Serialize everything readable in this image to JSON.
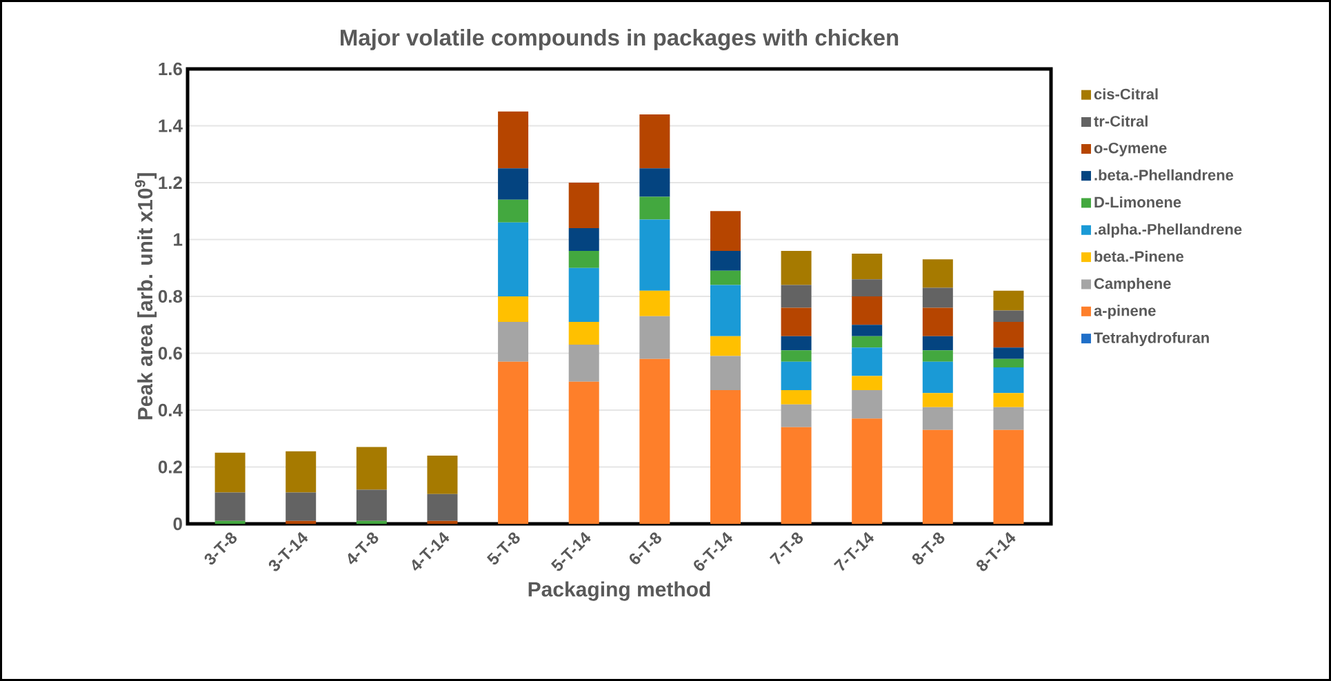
{
  "chart_data": {
    "type": "bar",
    "stacked": true,
    "title": "Major volatile compounds in packages with chicken",
    "xlabel": "Packaging method",
    "ylabel": "Peak area [arb. unit x10$^{9}$]",
    "categories": [
      "3-T-8",
      "3-T-14",
      "4-T-8",
      "4-T-14",
      "5-T-8",
      "5-T-14",
      "6-T-8",
      "6-T-14",
      "7-T-8",
      "7-T-14",
      "8-T-8",
      "8-T-14"
    ],
    "ylim": [
      0,
      1.6
    ],
    "yticks": [
      0,
      0.2,
      0.4,
      0.6,
      0.8,
      1,
      1.2,
      1.4,
      1.6
    ],
    "grid": "y",
    "legend": "right",
    "series": [
      {
        "name": "Tetrahydrofuran",
        "color": "#1f6fc8",
        "values": [
          0,
          0,
          0,
          0,
          0,
          0,
          0,
          0,
          0,
          0,
          0,
          0
        ]
      },
      {
        "name": "a-pinene",
        "color": "#fe7f2a",
        "values": [
          0,
          0,
          0,
          0,
          0.57,
          0.5,
          0.58,
          0.47,
          0.34,
          0.37,
          0.33,
          0.33
        ]
      },
      {
        "name": "Camphene",
        "color": "#a5a5a5",
        "values": [
          0,
          0,
          0,
          0,
          0.14,
          0.13,
          0.15,
          0.12,
          0.08,
          0.1,
          0.08,
          0.08
        ]
      },
      {
        "name": "beta.-Pinene",
        "color": "#ffc000",
        "values": [
          0,
          0,
          0,
          0,
          0.09,
          0.08,
          0.09,
          0.07,
          0.05,
          0.05,
          0.05,
          0.05
        ]
      },
      {
        "name": ".alpha.-Phellandrene",
        "color": "#1a9ad6",
        "values": [
          0,
          0,
          0,
          0,
          0.26,
          0.19,
          0.25,
          0.18,
          0.1,
          0.1,
          0.11,
          0.09
        ]
      },
      {
        "name": "D-Limonene",
        "color": "#43a83f",
        "values": [
          0.01,
          0,
          0.01,
          0,
          0.08,
          0.06,
          0.08,
          0.05,
          0.04,
          0.04,
          0.04,
          0.03
        ]
      },
      {
        "name": ".beta.-Phellandrene",
        "color": "#044480",
        "values": [
          0,
          0,
          0,
          0,
          0.11,
          0.08,
          0.1,
          0.07,
          0.05,
          0.04,
          0.05,
          0.04
        ]
      },
      {
        "name": "o-Cymene",
        "color": "#b64500",
        "values": [
          0,
          0.01,
          0,
          0.01,
          0.2,
          0.16,
          0.19,
          0.14,
          0.1,
          0.1,
          0.1,
          0.09
        ]
      },
      {
        "name": "tr-Citral",
        "color": "#636363",
        "values": [
          0.1,
          0.1,
          0.11,
          0.095,
          0,
          0,
          0,
          0,
          0.08,
          0.06,
          0.07,
          0.04
        ]
      },
      {
        "name": "cis-Citral",
        "color": "#a67a00",
        "values": [
          0.14,
          0.145,
          0.15,
          0.135,
          0,
          0,
          0,
          0,
          0.12,
          0.09,
          0.1,
          0.07
        ]
      }
    ]
  }
}
